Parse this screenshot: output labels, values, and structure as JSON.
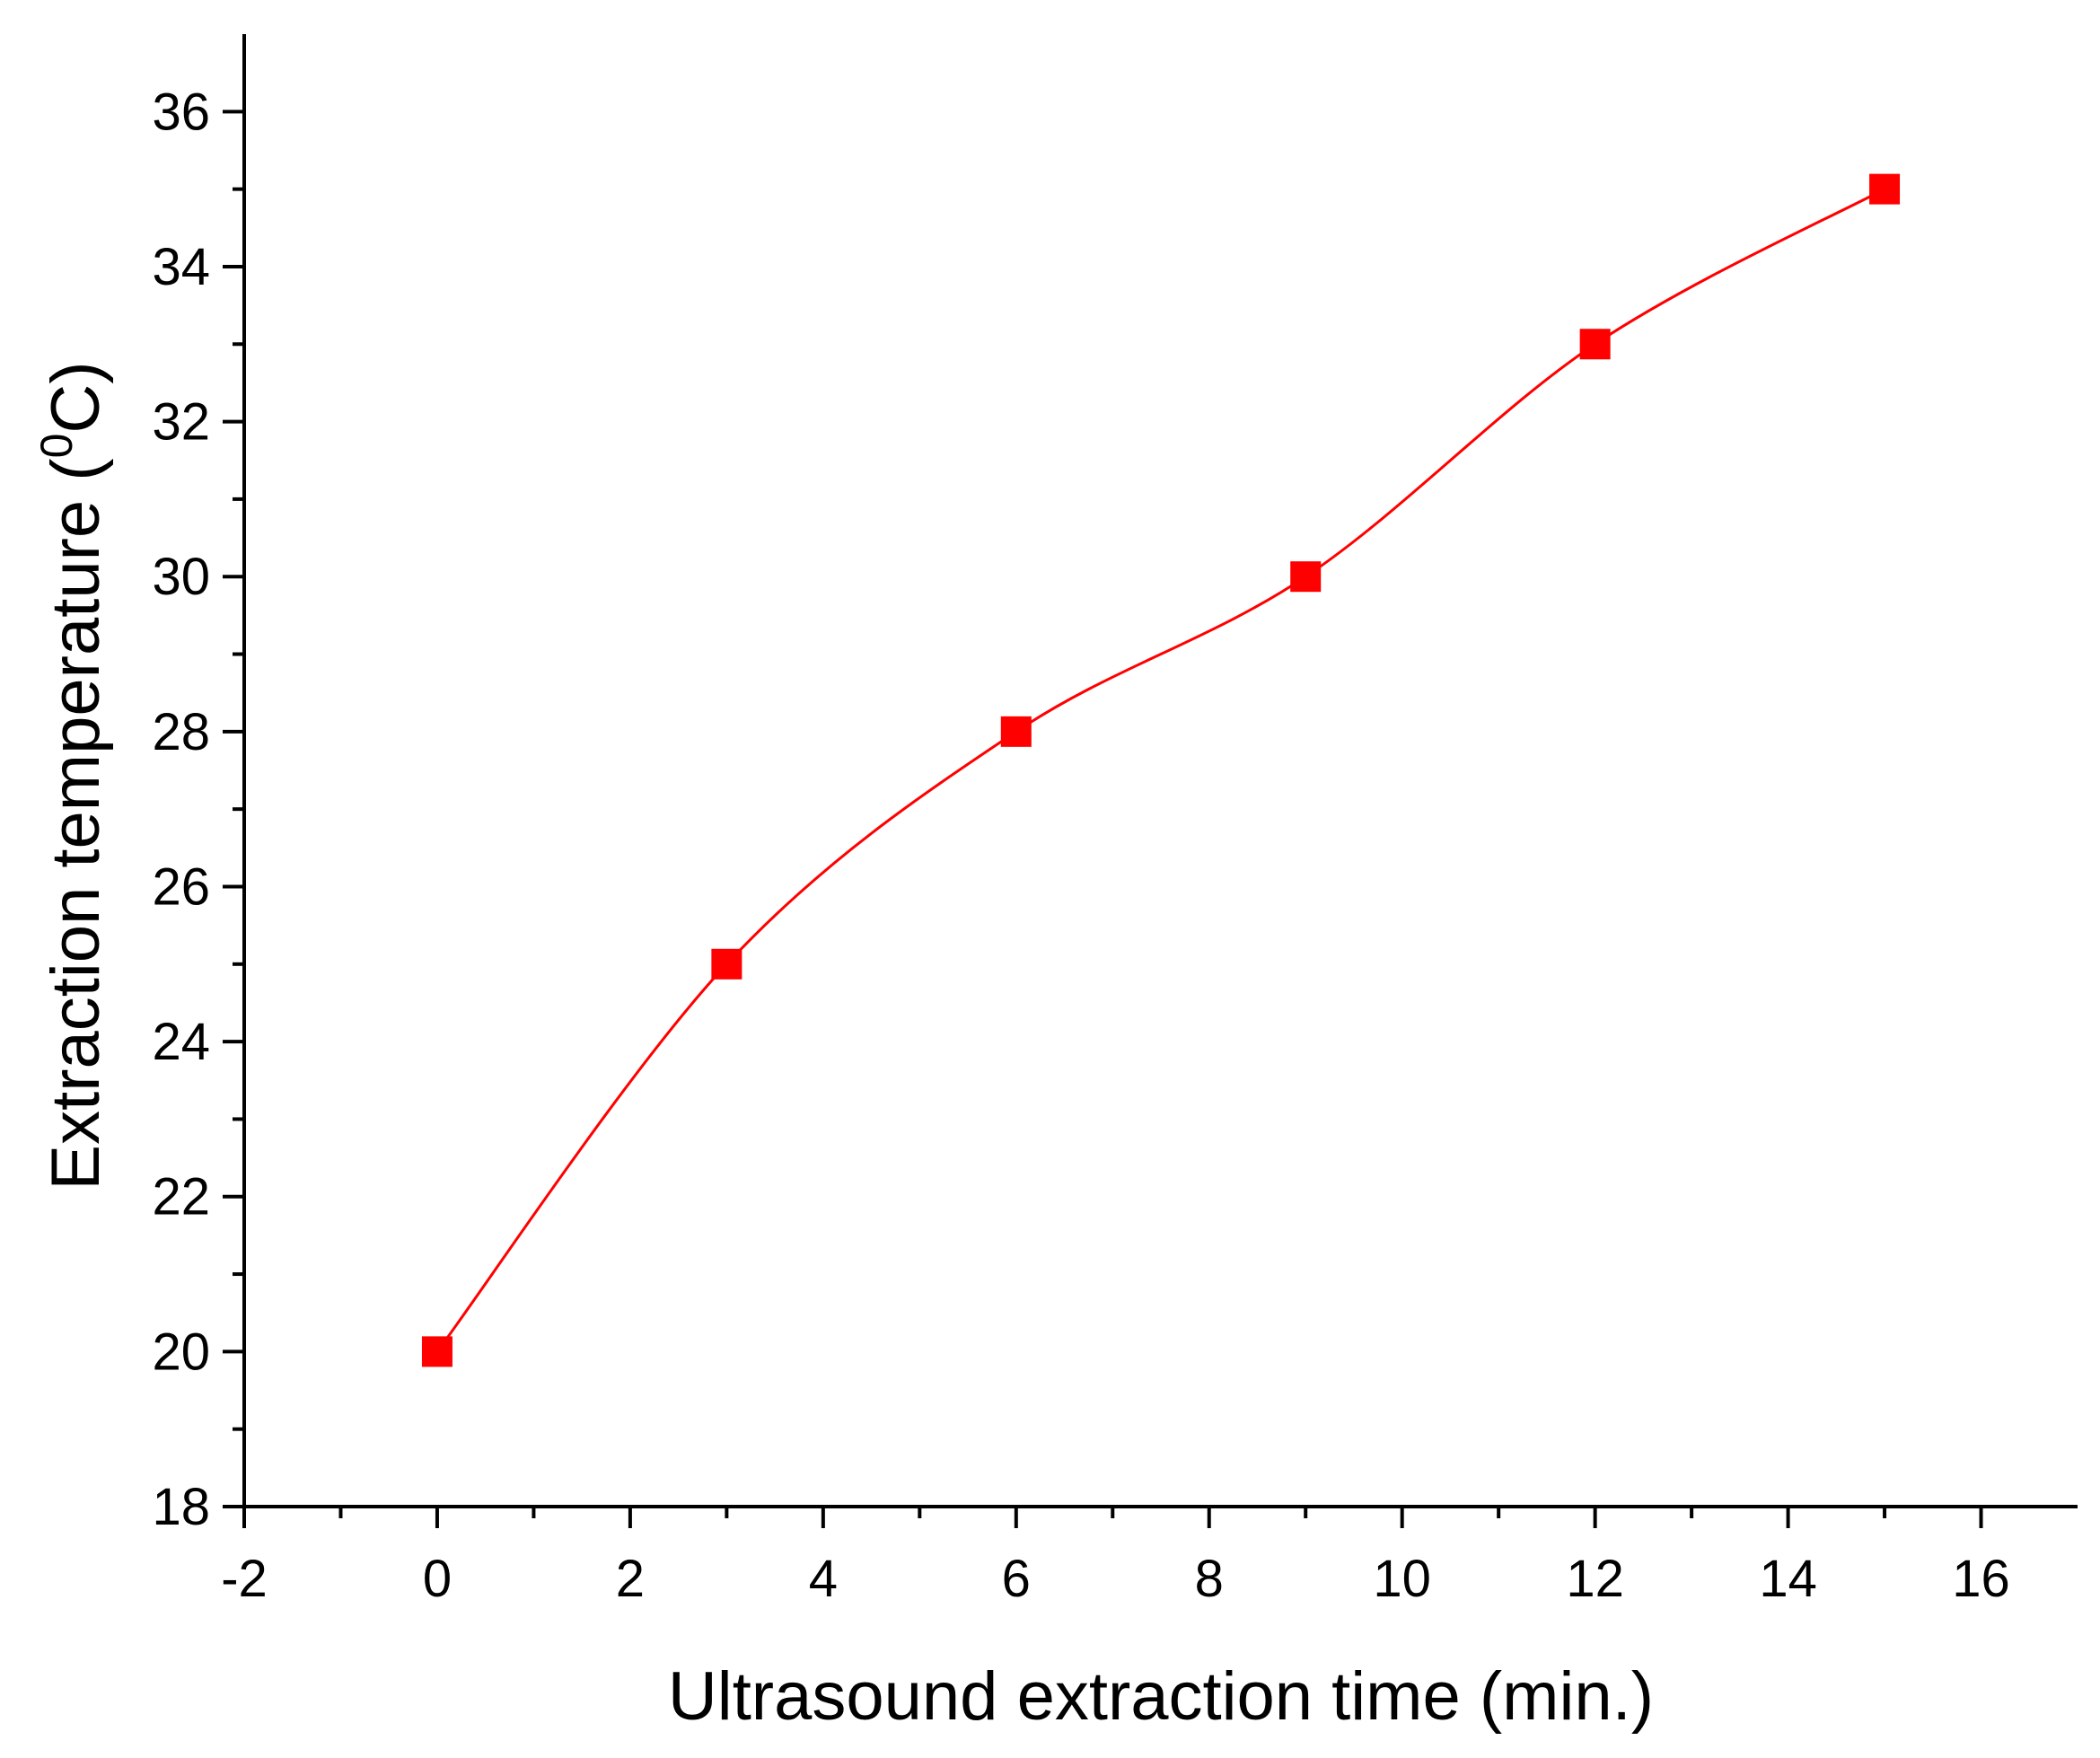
{
  "chart_data": {
    "type": "line",
    "title": "",
    "xlabel": "Ultrasound extraction time (min.)",
    "ylabel_main": "Extraction temperature (",
    "ylabel_sup": "0",
    "ylabel_end": "C)",
    "xlim": [
      -2,
      17
    ],
    "ylim": [
      18,
      37
    ],
    "x_ticks": [
      -2,
      0,
      2,
      4,
      6,
      8,
      10,
      12,
      14,
      16
    ],
    "y_ticks": [
      18,
      20,
      22,
      24,
      26,
      28,
      30,
      32,
      34,
      36
    ],
    "grid": false,
    "series": [
      {
        "x": [
          0,
          3,
          6,
          9,
          12,
          15
        ],
        "y": [
          20,
          25,
          28,
          30,
          33,
          35
        ],
        "color": "#ff0000",
        "marker": "square",
        "line": "smooth"
      }
    ]
  }
}
